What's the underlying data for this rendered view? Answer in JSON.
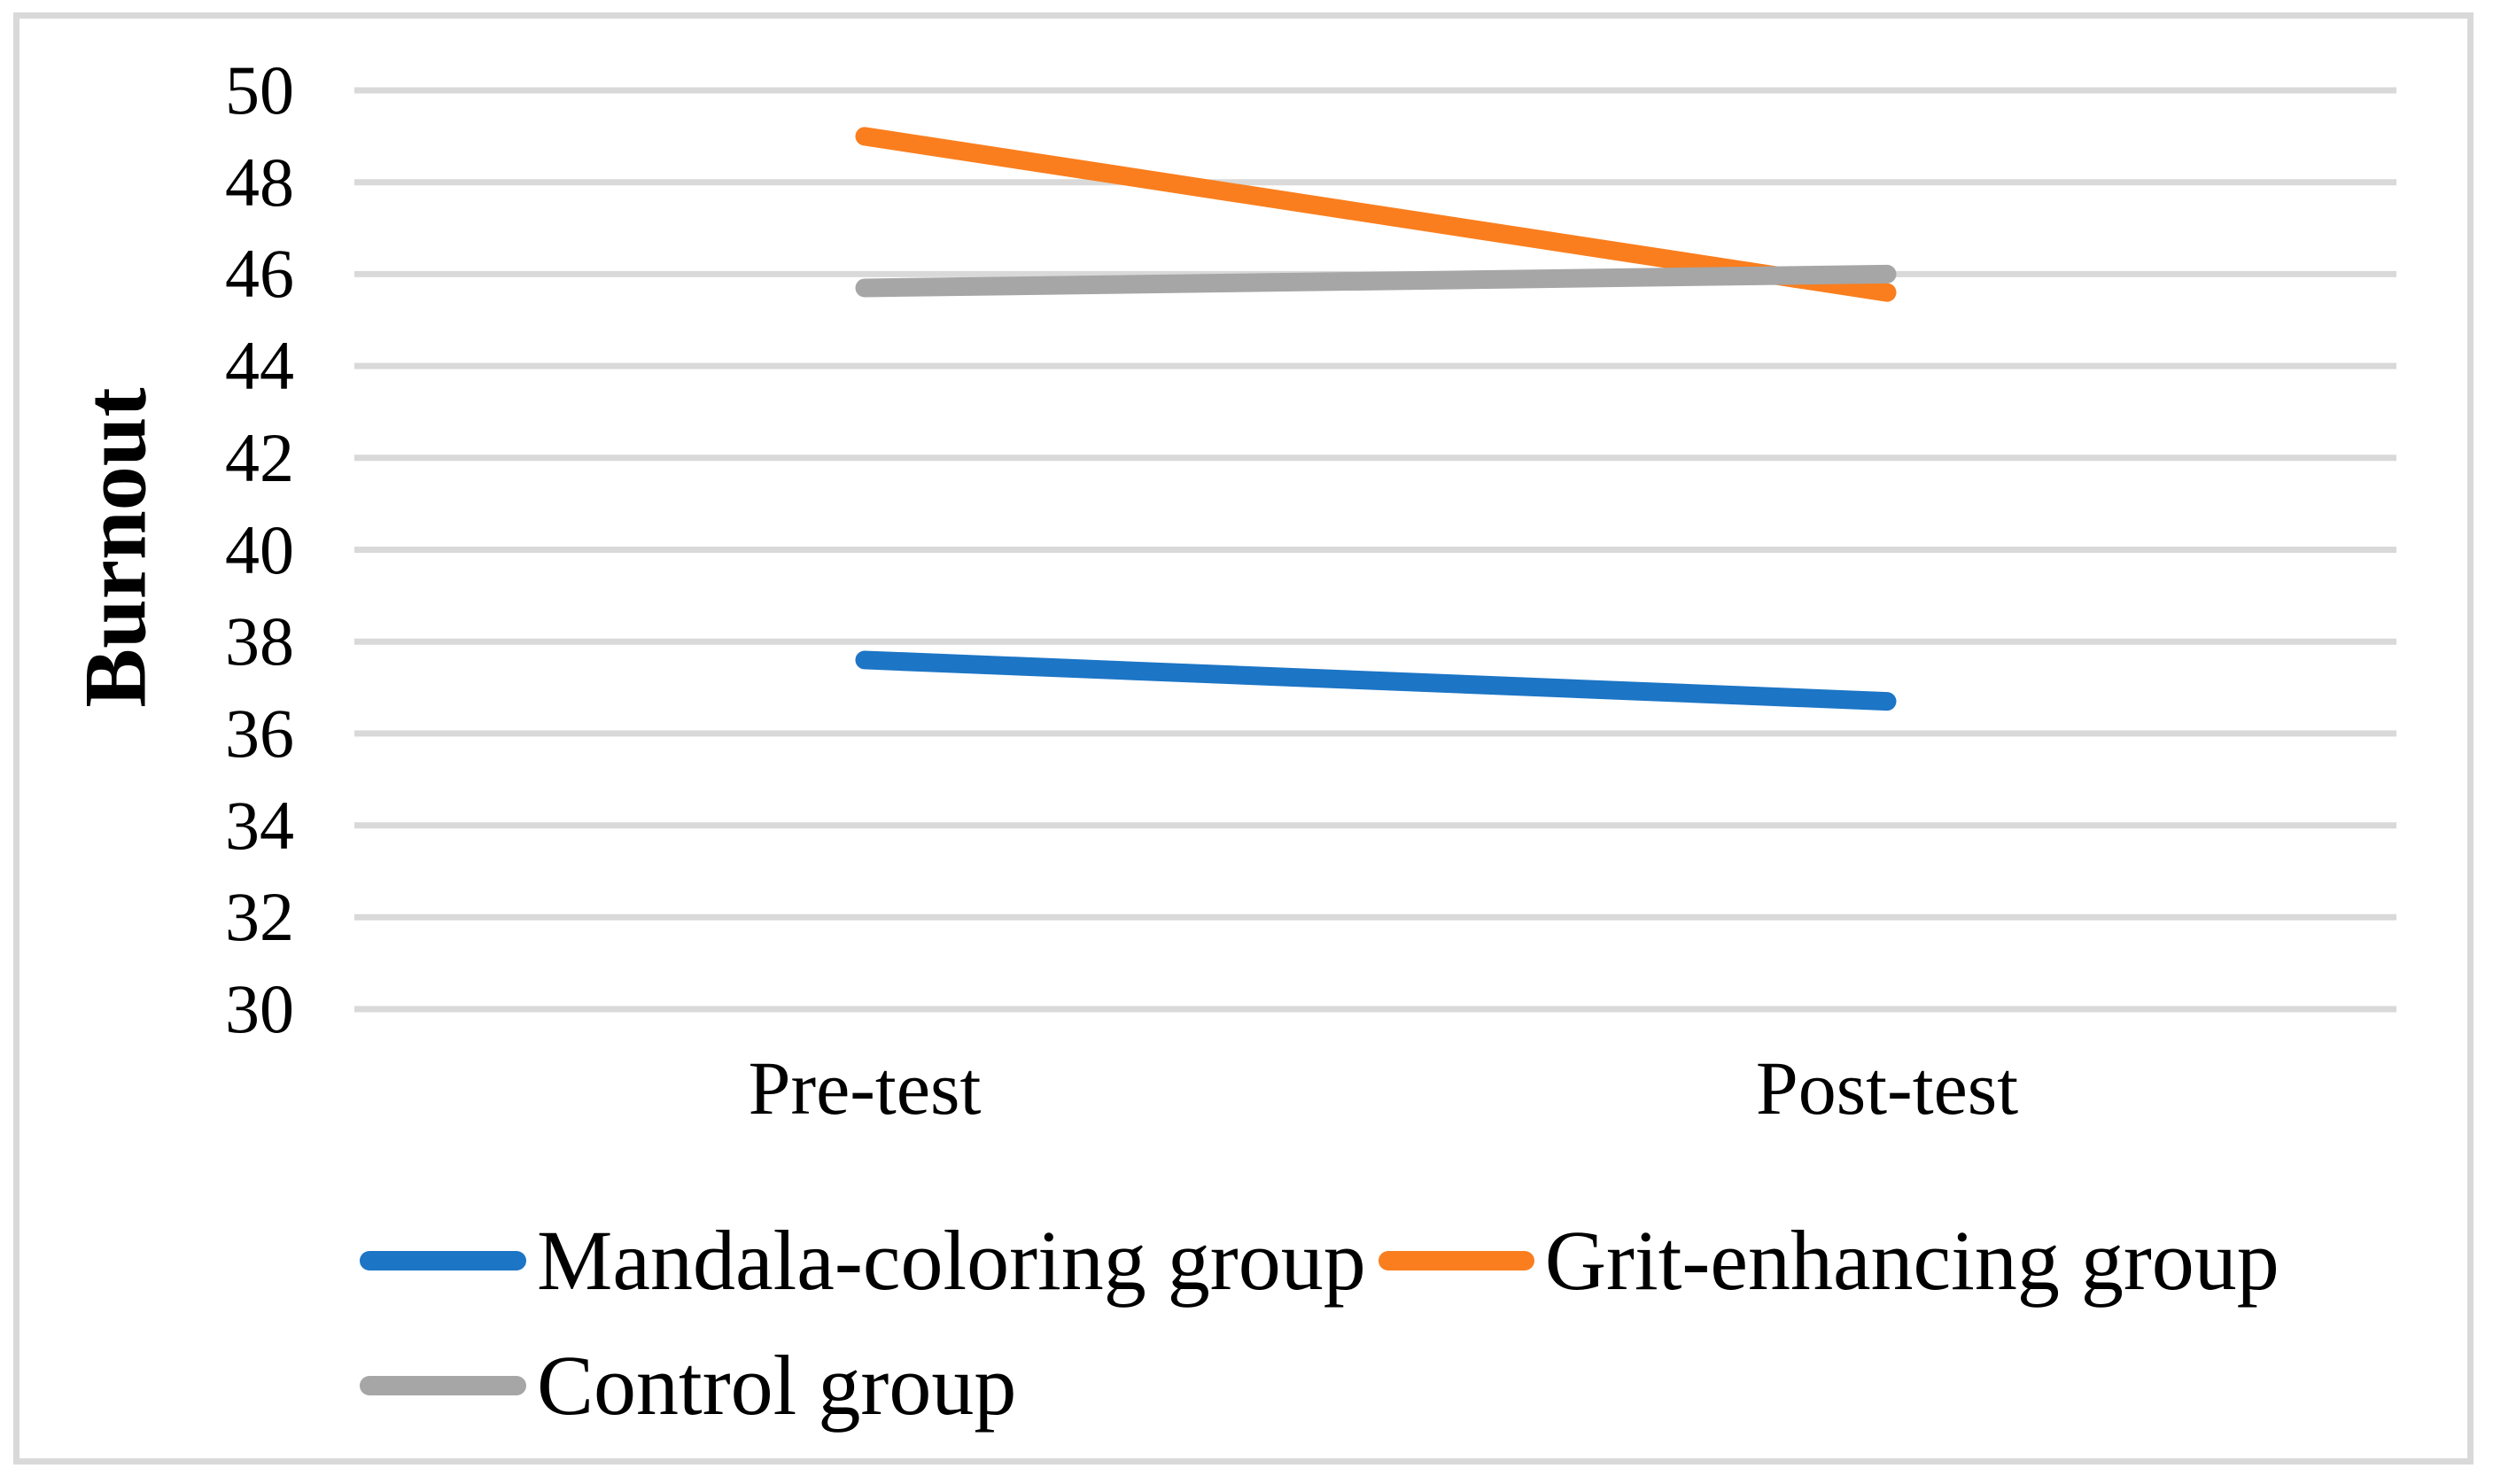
{
  "figure": {
    "background": "#ffffff",
    "border_color": "#d9d9d9"
  },
  "chart_data": {
    "type": "line",
    "title": "",
    "xlabel": "",
    "ylabel": "Burnout",
    "categories": [
      "Pre-test",
      "Post-test"
    ],
    "series": [
      {
        "name": "Mandala-coloring group",
        "color": "#1c75c5",
        "values": [
          37.6,
          36.7
        ]
      },
      {
        "name": "Grit-enhancing group",
        "color": "#fa7e1e",
        "values": [
          49.0,
          45.6
        ]
      },
      {
        "name": "Control group",
        "color": "#a6a6a6",
        "values": [
          45.7,
          46.0
        ]
      }
    ],
    "ylim": [
      30,
      50
    ],
    "yticks": [
      50,
      48,
      46,
      44,
      42,
      40,
      38,
      36,
      34,
      32,
      30
    ],
    "grid": "horizontal",
    "gridline_color": "#d9d9d9",
    "legend_position": "bottom-left",
    "legend_rows": [
      [
        0,
        1
      ],
      [
        2
      ]
    ]
  }
}
